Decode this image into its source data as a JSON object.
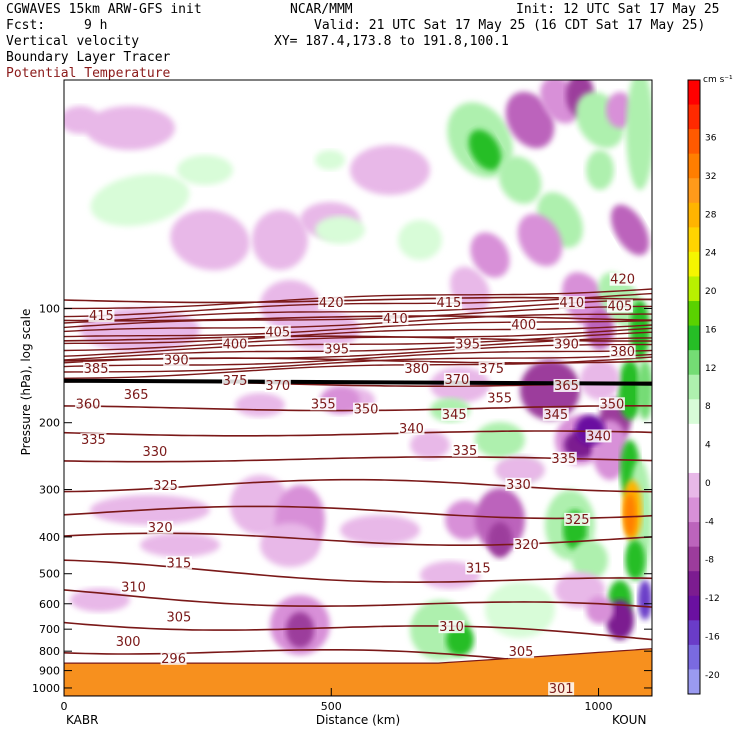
{
  "header": {
    "model": "CGWAVES 15km ARW-GFS init",
    "fcst_label": "Fcst:",
    "fcst_value": "9 h",
    "fields": [
      "Vertical velocity",
      "Boundary Layer Tracer",
      "Potential Temperature"
    ],
    "org": "NCAR/MMM",
    "init": "Init: 12 UTC Sat 17 May 25",
    "valid": "Valid: 21 UTC Sat 17 May 25 (16 CDT Sat 17 May 25)",
    "xy": "XY= 187.4,173.8 to 191.8,100.1"
  },
  "colors": {
    "theta_line": "#7a1818",
    "field3_text": "#8b1a1a",
    "terrain": "#f7901e"
  },
  "chart_data": {
    "type": "heatmap",
    "xlabel": "Distance (km)",
    "ylabel": "Pressure (hPa), log scale",
    "xlim": [
      0,
      1100
    ],
    "ylim": [
      1050,
      25
    ],
    "x_ticks": [
      0,
      500,
      1000
    ],
    "y_ticks": [
      100,
      200,
      300,
      400,
      500,
      600,
      700,
      800,
      900,
      1000
    ],
    "left_station": "KABR",
    "right_station": "KOUN",
    "colorbar": {
      "units": "cm s⁻¹",
      "labels": [
        "36",
        "32",
        "28",
        "24",
        "20",
        "16",
        "12",
        "8",
        "4",
        "0",
        "-4",
        "-8",
        "-12",
        "-16",
        "-20"
      ],
      "colors": [
        "#ff0000",
        "#ff2a00",
        "#ff5a00",
        "#ff7e00",
        "#ff9a1a",
        "#ffb400",
        "#ffd400",
        "#f5f500",
        "#b8f000",
        "#5ad200",
        "#26be26",
        "#74dc74",
        "#aef0ae",
        "#d8fcd8",
        "#ffffff",
        "#ffffff",
        "#e8b8e8",
        "#d890d8",
        "#bc64bc",
        "#9c3c9c",
        "#7c1c90",
        "#6a10a0",
        "#6a3cc8",
        "#7a6ae0",
        "#9a9af0"
      ]
    },
    "theta_labels": [
      {
        "v": "420",
        "x": 500,
        "p": 98
      },
      {
        "v": "420",
        "x": 1045,
        "p": 85
      },
      {
        "v": "415",
        "x": 70,
        "p": 106
      },
      {
        "v": "415",
        "x": 720,
        "p": 98
      },
      {
        "v": "410",
        "x": 620,
        "p": 108
      },
      {
        "v": "410",
        "x": 950,
        "p": 98
      },
      {
        "v": "405",
        "x": 400,
        "p": 117
      },
      {
        "v": "405",
        "x": 1040,
        "p": 100
      },
      {
        "v": "400",
        "x": 320,
        "p": 126
      },
      {
        "v": "400",
        "x": 860,
        "p": 112
      },
      {
        "v": "395",
        "x": 510,
        "p": 130
      },
      {
        "v": "395",
        "x": 755,
        "p": 126
      },
      {
        "v": "390",
        "x": 210,
        "p": 139
      },
      {
        "v": "390",
        "x": 940,
        "p": 126
      },
      {
        "v": "385",
        "x": 60,
        "p": 146
      },
      {
        "v": "380",
        "x": 660,
        "p": 146
      },
      {
        "v": "380",
        "x": 1045,
        "p": 132
      },
      {
        "v": "375",
        "x": 800,
        "p": 146
      },
      {
        "v": "375",
        "x": 320,
        "p": 157
      },
      {
        "v": "370",
        "x": 400,
        "p": 162
      },
      {
        "v": "370",
        "x": 735,
        "p": 156
      },
      {
        "v": "365",
        "x": 135,
        "p": 171
      },
      {
        "v": "365",
        "x": 940,
        "p": 162
      },
      {
        "v": "360",
        "x": 45,
        "p": 181
      },
      {
        "v": "355",
        "x": 485,
        "p": 181
      },
      {
        "v": "355",
        "x": 815,
        "p": 175
      },
      {
        "v": "350",
        "x": 565,
        "p": 187
      },
      {
        "v": "350",
        "x": 1025,
        "p": 181
      },
      {
        "v": "345",
        "x": 730,
        "p": 193
      },
      {
        "v": "345",
        "x": 920,
        "p": 193
      },
      {
        "v": "340",
        "x": 650,
        "p": 210
      },
      {
        "v": "340",
        "x": 1000,
        "p": 220
      },
      {
        "v": "335",
        "x": 55,
        "p": 225
      },
      {
        "v": "335",
        "x": 750,
        "p": 240
      },
      {
        "v": "335",
        "x": 935,
        "p": 252
      },
      {
        "v": "330",
        "x": 170,
        "p": 242
      },
      {
        "v": "330",
        "x": 850,
        "p": 295
      },
      {
        "v": "325",
        "x": 190,
        "p": 297
      },
      {
        "v": "325",
        "x": 960,
        "p": 365
      },
      {
        "v": "320",
        "x": 180,
        "p": 383
      },
      {
        "v": "320",
        "x": 865,
        "p": 425
      },
      {
        "v": "315",
        "x": 215,
        "p": 475
      },
      {
        "v": "315",
        "x": 775,
        "p": 490
      },
      {
        "v": "310",
        "x": 130,
        "p": 550
      },
      {
        "v": "310",
        "x": 725,
        "p": 700
      },
      {
        "v": "305",
        "x": 215,
        "p": 660
      },
      {
        "v": "305",
        "x": 855,
        "p": 815
      },
      {
        "v": "300",
        "x": 120,
        "p": 765
      },
      {
        "v": "296",
        "x": 205,
        "p": 848
      },
      {
        "v": "301",
        "x": 930,
        "p": 1020
      }
    ]
  }
}
